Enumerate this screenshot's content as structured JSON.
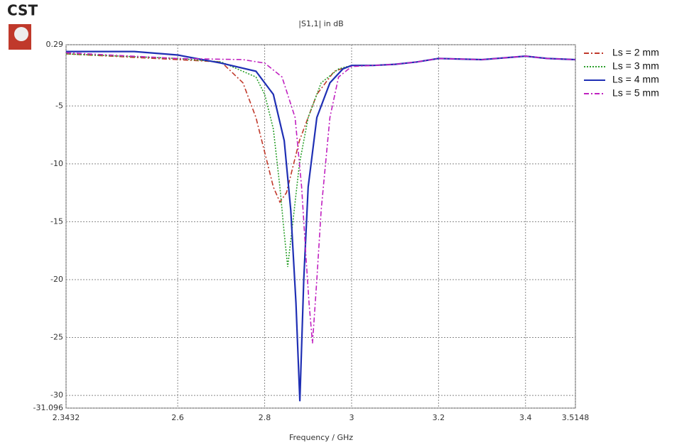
{
  "logo": "CST",
  "chart_data": {
    "type": "line",
    "title": "|S1,1| in dB",
    "x_label": "Frequency / GHz",
    "xlim": [
      2.3432,
      3.5148
    ],
    "xticks": [
      2.3432,
      2.6,
      2.8,
      3,
      3.2,
      3.4,
      3.5148
    ],
    "ylim": [
      -31.096,
      0.29
    ],
    "yticks": [
      0.29,
      -5,
      -10,
      -15,
      -20,
      -25,
      -30,
      -31.096
    ],
    "grid": true,
    "legend": "right",
    "series": [
      {
        "name": "Ls = 2 mm",
        "color": "#c0392b",
        "linestyle": "dashdot",
        "x": [
          2.3432,
          2.6,
          2.7,
          2.75,
          2.78,
          2.8,
          2.82,
          2.835,
          2.85,
          2.88,
          2.92,
          2.96,
          3.0,
          3.05,
          3.1,
          3.15,
          3.2,
          3.3,
          3.4,
          3.45,
          3.5148
        ],
        "values": [
          -0.5,
          -1.0,
          -1.2,
          -3,
          -6,
          -9,
          -12,
          -13.3,
          -12.5,
          -8,
          -4,
          -2,
          -1.5,
          -1.5,
          -1.4,
          -1.2,
          -0.9,
          -1.0,
          -0.7,
          -0.9,
          -1.0
        ]
      },
      {
        "name": "Ls = 3 mm",
        "color": "#2ca02c",
        "linestyle": "dotted",
        "x": [
          2.3432,
          2.6,
          2.7,
          2.78,
          2.8,
          2.82,
          2.835,
          2.845,
          2.853,
          2.865,
          2.88,
          2.9,
          2.93,
          2.97,
          3.0,
          3.05,
          3.1,
          3.15,
          3.2,
          3.3,
          3.4,
          3.45,
          3.5148
        ],
        "values": [
          -0.5,
          -0.9,
          -1.2,
          -2.5,
          -4,
          -7,
          -12,
          -16,
          -18.9,
          -15,
          -10,
          -6,
          -3,
          -1.8,
          -1.5,
          -1.5,
          -1.4,
          -1.2,
          -0.9,
          -1.0,
          -0.7,
          -0.9,
          -1.0
        ]
      },
      {
        "name": "Ls = 4 mm",
        "color": "#1f2fb4",
        "linestyle": "solid",
        "x": [
          2.3432,
          2.5,
          2.6,
          2.7,
          2.78,
          2.82,
          2.845,
          2.86,
          2.872,
          2.881,
          2.89,
          2.9,
          2.92,
          2.95,
          2.98,
          3.0,
          3.05,
          3.1,
          3.15,
          3.2,
          3.3,
          3.4,
          3.45,
          3.5148
        ],
        "values": [
          -0.3,
          -0.3,
          -0.6,
          -1.3,
          -2,
          -4,
          -8,
          -14,
          -22,
          -30.5,
          -20,
          -12,
          -6,
          -3,
          -1.8,
          -1.5,
          -1.5,
          -1.4,
          -1.2,
          -0.9,
          -1.0,
          -0.7,
          -0.9,
          -1.0
        ]
      },
      {
        "name": "Ls = 5 mm",
        "color": "#c020c0",
        "linestyle": "dashdot",
        "x": [
          2.3432,
          2.6,
          2.75,
          2.8,
          2.84,
          2.87,
          2.885,
          2.895,
          2.902,
          2.91,
          2.92,
          2.93,
          2.95,
          2.97,
          3.0,
          3.05,
          3.1,
          3.15,
          3.2,
          3.3,
          3.4,
          3.45,
          3.5148
        ],
        "values": [
          -0.4,
          -0.9,
          -1.0,
          -1.3,
          -2.5,
          -6,
          -12,
          -18,
          -22,
          -25.5,
          -20,
          -14,
          -6,
          -2.5,
          -1.6,
          -1.5,
          -1.4,
          -1.2,
          -0.9,
          -1.0,
          -0.7,
          -0.9,
          -1.0
        ]
      }
    ]
  }
}
